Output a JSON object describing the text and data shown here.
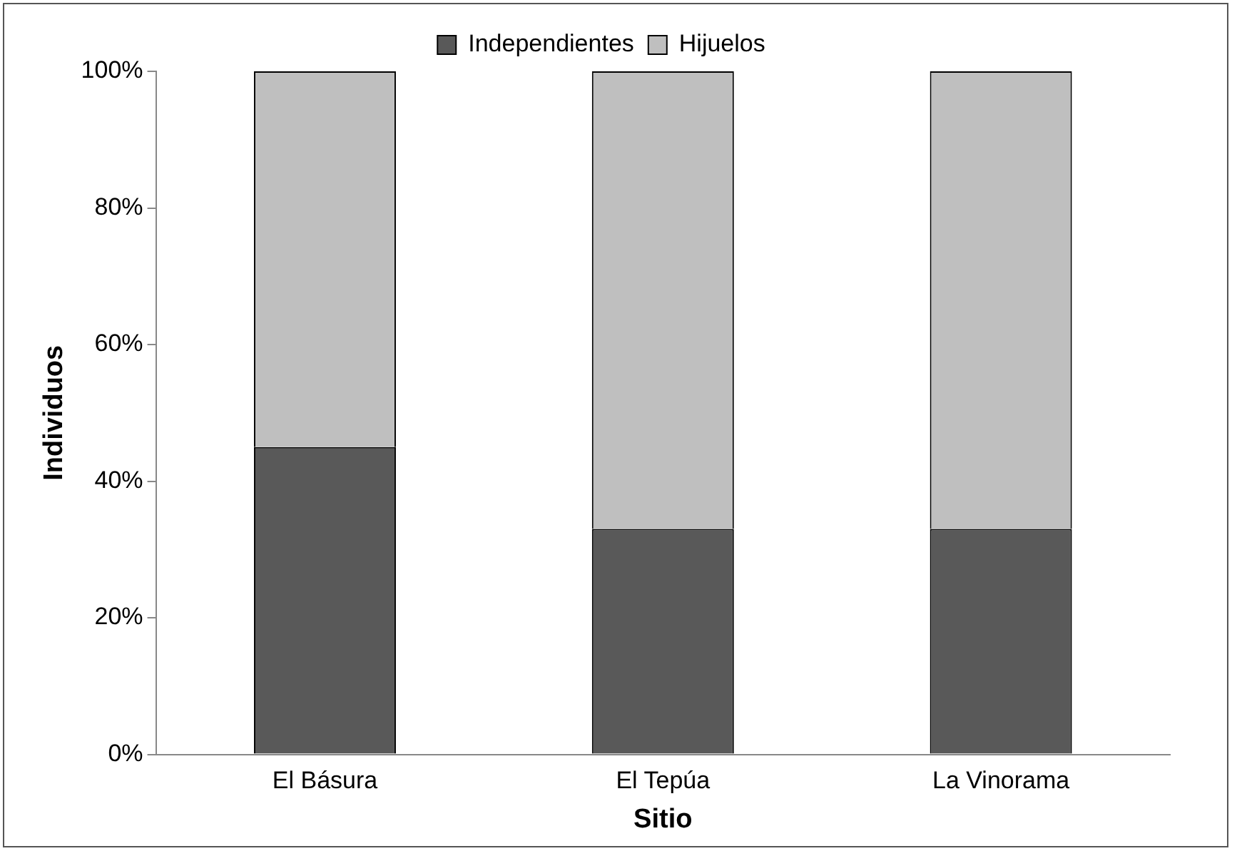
{
  "chart_data": {
    "type": "bar",
    "stacked": true,
    "xlabel": "Sitio",
    "ylabel": "Individuos",
    "categories": [
      "El Básura",
      "El Tepúa",
      "La Vinorama"
    ],
    "series": [
      {
        "name": "Independientes",
        "color": "#595959",
        "values": [
          45,
          33,
          33
        ]
      },
      {
        "name": "Hijuelos",
        "color": "#bfbfbf",
        "values": [
          55,
          67,
          67
        ]
      }
    ],
    "ylim": [
      0,
      100
    ],
    "yticks": [
      {
        "value": 0,
        "label": "0%"
      },
      {
        "value": 20,
        "label": "20%"
      },
      {
        "value": 40,
        "label": "40%"
      },
      {
        "value": 60,
        "label": "60%"
      },
      {
        "value": 80,
        "label": "80%"
      },
      {
        "value": 100,
        "label": "100%"
      }
    ],
    "grid": false,
    "legend": "top"
  }
}
